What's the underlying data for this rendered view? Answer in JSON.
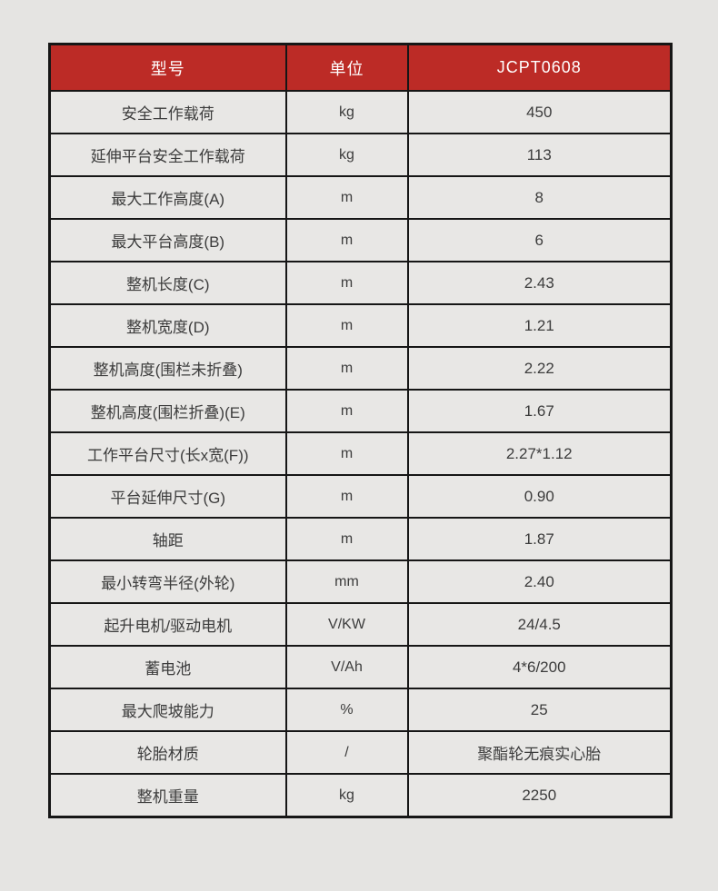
{
  "page": {
    "background_color": "#e5e4e2"
  },
  "table": {
    "accent_color": "#bc2b26",
    "border_color": "#161616",
    "cell_background": "#e8e7e5",
    "header_text_color": "#ffffff",
    "body_text_color": "#3c3c3c",
    "header": {
      "model_label": "型号",
      "unit_label": "单位",
      "model_value": "JCPT0608"
    },
    "rows": [
      {
        "label": "安全工作载荷",
        "unit": "kg",
        "value": "450"
      },
      {
        "label": "延伸平台安全工作载荷",
        "unit": "kg",
        "value": "113"
      },
      {
        "label": "最大工作高度(A)",
        "unit": "m",
        "value": "8"
      },
      {
        "label": "最大平台高度(B)",
        "unit": "m",
        "value": "6"
      },
      {
        "label": "整机长度(C)",
        "unit": "m",
        "value": "2.43"
      },
      {
        "label": "整机宽度(D)",
        "unit": "m",
        "value": "1.21"
      },
      {
        "label": "整机高度(围栏未折叠)",
        "unit": "m",
        "value": "2.22"
      },
      {
        "label": "整机高度(围栏折叠)(E)",
        "unit": "m",
        "value": "1.67"
      },
      {
        "label": "工作平台尺寸(长x宽(F))",
        "unit": "m",
        "value": "2.27*1.12"
      },
      {
        "label": "平台延伸尺寸(G)",
        "unit": "m",
        "value": "0.90"
      },
      {
        "label": "轴距",
        "unit": "m",
        "value": "1.87"
      },
      {
        "label": "最小转弯半径(外轮)",
        "unit": "mm",
        "value": "2.40"
      },
      {
        "label": "起升电机/驱动电机",
        "unit": "V/KW",
        "value": "24/4.5"
      },
      {
        "label": "蓄电池",
        "unit": "V/Ah",
        "value": "4*6/200"
      },
      {
        "label": "最大爬坡能力",
        "unit": "%",
        "value": "25"
      },
      {
        "label": "轮胎材质",
        "unit": "/",
        "value": "聚酯轮无痕实心胎"
      },
      {
        "label": "整机重量",
        "unit": "kg",
        "value": "2250"
      }
    ]
  }
}
